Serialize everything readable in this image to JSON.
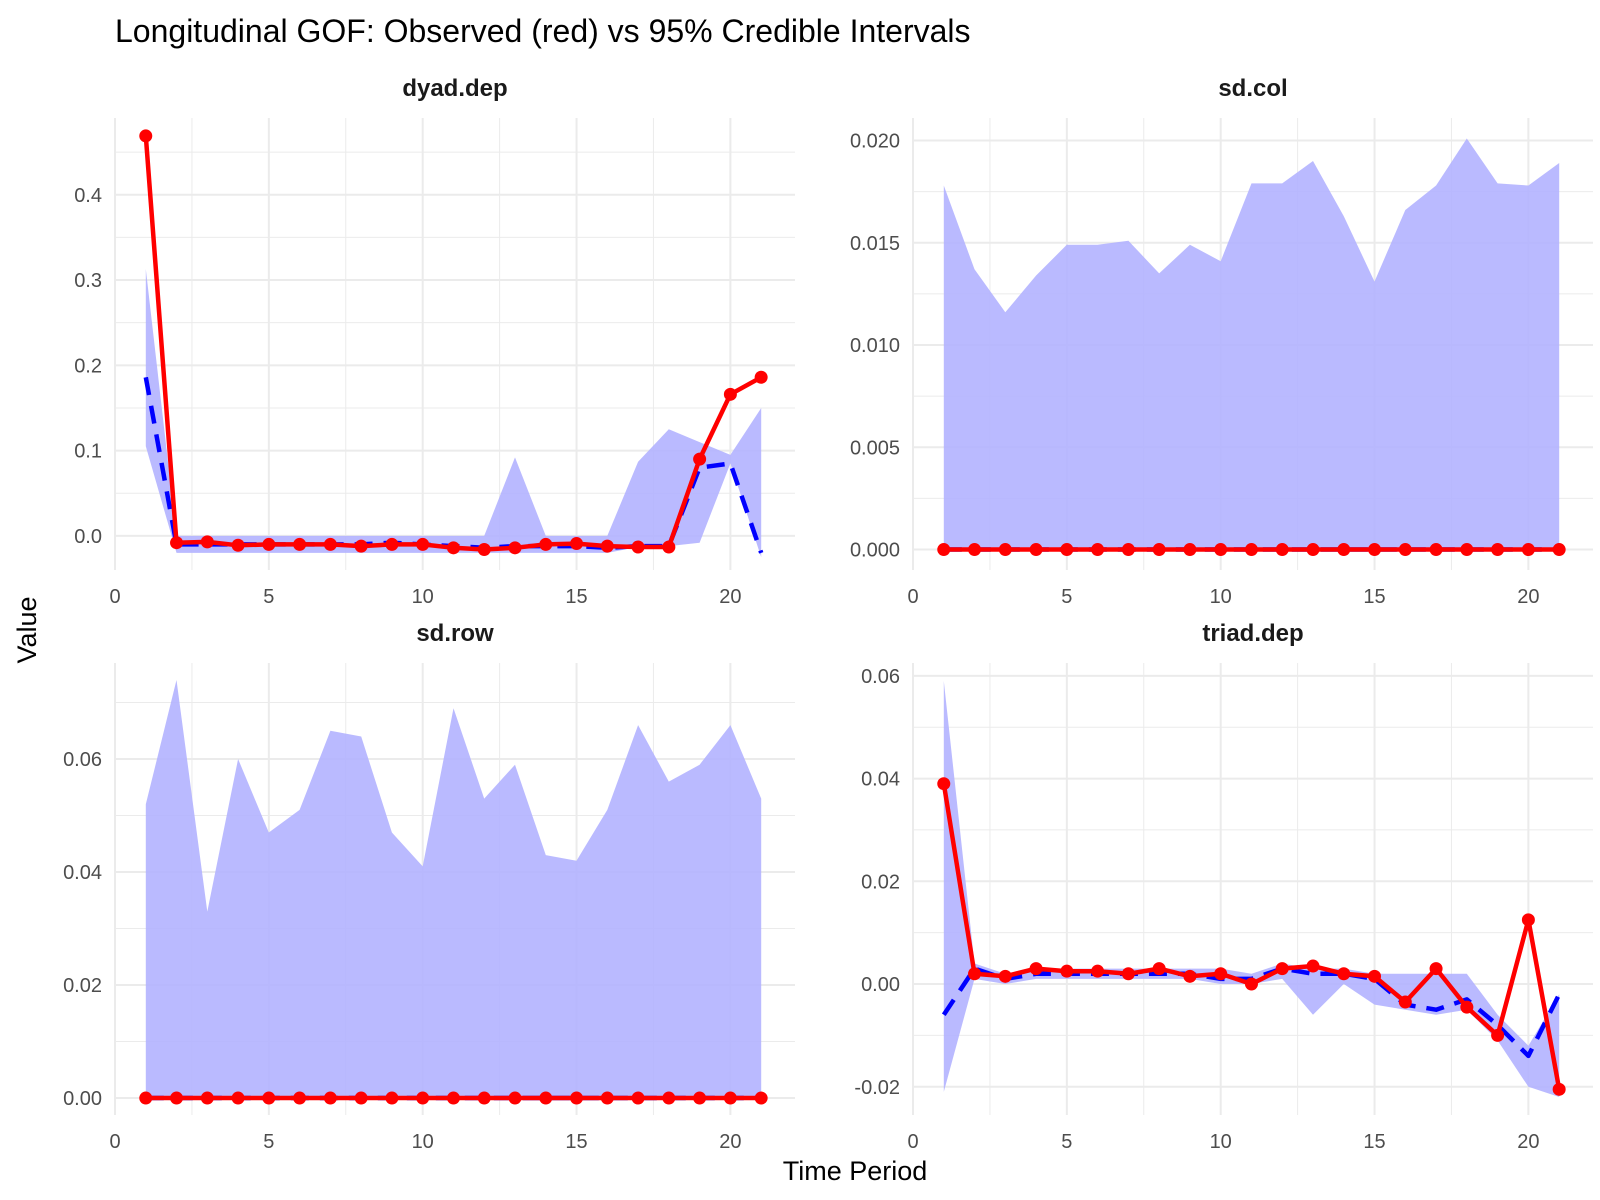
{
  "title": "Longitudinal GOF: Observed (red) vs 95% Credible Intervals",
  "xlabel": "Time Period",
  "ylabel": "Value",
  "colors": {
    "observed": "#ff0000",
    "predicted": "#0000ff",
    "ribbon": "#b3b3ff",
    "grid": "#ebebeb"
  },
  "chart_data": [
    {
      "type": "line",
      "panel": "dyad.dep",
      "x": [
        1,
        2,
        3,
        4,
        5,
        6,
        7,
        8,
        9,
        10,
        11,
        12,
        13,
        14,
        15,
        16,
        17,
        18,
        19,
        20,
        21
      ],
      "xlim": [
        0,
        22.1
      ],
      "xticks": [
        "0",
        "5",
        "10",
        "15",
        "20"
      ],
      "xtick_values": [
        0,
        5,
        10,
        15,
        20
      ],
      "ylim": [
        -0.04,
        0.49
      ],
      "yticks": [
        "0.0",
        "0.1",
        "0.2",
        "0.3",
        "0.4"
      ],
      "ytick_values": [
        0,
        0.1,
        0.2,
        0.3,
        0.4
      ],
      "series": [
        {
          "name": "Observed",
          "role": "observed",
          "values": [
            0.469,
            -0.008,
            -0.007,
            -0.011,
            -0.01,
            -0.01,
            -0.01,
            -0.012,
            -0.01,
            -0.01,
            -0.014,
            -0.016,
            -0.014,
            -0.01,
            -0.009,
            -0.012,
            -0.013,
            -0.013,
            0.09,
            0.166,
            0.186
          ]
        },
        {
          "name": "Predicted mean",
          "role": "mean",
          "values": [
            0.186,
            -0.01,
            -0.01,
            -0.01,
            -0.01,
            -0.01,
            -0.01,
            -0.01,
            -0.008,
            -0.01,
            -0.012,
            -0.014,
            -0.012,
            -0.012,
            -0.012,
            -0.014,
            -0.012,
            -0.012,
            0.08,
            0.085,
            -0.02
          ]
        },
        {
          "name": "95% CI upper",
          "role": "upper",
          "values": [
            0.313,
            0.0,
            0.0,
            0.0,
            0.0,
            0.0,
            0.0,
            0.0,
            0.0,
            0.0,
            0.0,
            0.0,
            0.092,
            0.0,
            0.0,
            0.0,
            0.087,
            0.125,
            0.11,
            0.095,
            0.15
          ]
        },
        {
          "name": "95% CI lower",
          "role": "lower",
          "values": [
            0.105,
            -0.02,
            -0.02,
            -0.02,
            -0.02,
            -0.02,
            -0.02,
            -0.02,
            -0.02,
            -0.02,
            -0.02,
            -0.02,
            -0.02,
            -0.02,
            -0.02,
            -0.02,
            -0.013,
            -0.012,
            -0.008,
            0.085,
            -0.025
          ]
        }
      ]
    },
    {
      "type": "line",
      "panel": "sd.col",
      "x": [
        1,
        2,
        3,
        4,
        5,
        6,
        7,
        8,
        9,
        10,
        11,
        12,
        13,
        14,
        15,
        16,
        17,
        18,
        19,
        20,
        21
      ],
      "xlim": [
        0,
        22.1
      ],
      "xticks": [
        "0",
        "5",
        "10",
        "15",
        "20"
      ],
      "xtick_values": [
        0,
        5,
        10,
        15,
        20
      ],
      "ylim": [
        -0.001,
        0.0211
      ],
      "yticks": [
        "0.000",
        "0.005",
        "0.010",
        "0.015",
        "0.020"
      ],
      "ytick_values": [
        0,
        0.005,
        0.01,
        0.015,
        0.02
      ],
      "series": [
        {
          "name": "Observed",
          "role": "observed",
          "values": [
            0,
            0,
            0,
            0,
            0,
            0,
            0,
            0,
            0,
            0,
            0,
            0,
            0,
            0,
            0,
            0,
            0,
            0,
            0,
            0,
            0
          ]
        },
        {
          "name": "Predicted mean",
          "role": "mean",
          "values": [
            0,
            0,
            0,
            0,
            0,
            0,
            0,
            0,
            0,
            0,
            0,
            0,
            0,
            0,
            0,
            0,
            0,
            0,
            0,
            0,
            0
          ]
        },
        {
          "name": "95% CI upper",
          "role": "upper",
          "values": [
            0.0178,
            0.0137,
            0.0116,
            0.0134,
            0.0149,
            0.0149,
            0.0151,
            0.0135,
            0.0149,
            0.0141,
            0.0179,
            0.0179,
            0.019,
            0.0163,
            0.0131,
            0.0166,
            0.0178,
            0.0201,
            0.0179,
            0.0178,
            0.0189
          ]
        },
        {
          "name": "95% CI lower",
          "role": "lower",
          "values": [
            0,
            0,
            0,
            0,
            0,
            0,
            0,
            0,
            0,
            0,
            0,
            0,
            0,
            0,
            0,
            0,
            0,
            0,
            0,
            0,
            0
          ]
        }
      ]
    },
    {
      "type": "line",
      "panel": "sd.row",
      "x": [
        1,
        2,
        3,
        4,
        5,
        6,
        7,
        8,
        9,
        10,
        11,
        12,
        13,
        14,
        15,
        16,
        17,
        18,
        19,
        20,
        21
      ],
      "xlim": [
        0,
        22.1
      ],
      "xticks": [
        "0",
        "5",
        "10",
        "15",
        "20"
      ],
      "xtick_values": [
        0,
        5,
        10,
        15,
        20
      ],
      "ylim": [
        -0.003,
        0.077
      ],
      "yticks": [
        "0.00",
        "0.02",
        "0.04",
        "0.06"
      ],
      "ytick_values": [
        0,
        0.02,
        0.04,
        0.06
      ],
      "series": [
        {
          "name": "Observed",
          "role": "observed",
          "values": [
            0,
            0,
            0,
            0,
            0,
            0,
            0,
            0,
            0,
            0,
            0,
            0,
            0,
            0,
            0,
            0,
            0,
            0,
            0,
            0,
            0
          ]
        },
        {
          "name": "Predicted mean",
          "role": "mean",
          "values": [
            0,
            0,
            0,
            0,
            0,
            0,
            0,
            0,
            0,
            0,
            0,
            0,
            0,
            0,
            0,
            0,
            0,
            0,
            0,
            0,
            0
          ]
        },
        {
          "name": "95% CI upper",
          "role": "upper",
          "values": [
            0.052,
            0.074,
            0.033,
            0.06,
            0.047,
            0.051,
            0.065,
            0.064,
            0.047,
            0.041,
            0.069,
            0.053,
            0.059,
            0.043,
            0.042,
            0.051,
            0.066,
            0.056,
            0.059,
            0.066,
            0.053
          ]
        },
        {
          "name": "95% CI lower",
          "role": "lower",
          "values": [
            0,
            0,
            0,
            0,
            0,
            0,
            0,
            0,
            0,
            0,
            0,
            0,
            0,
            0,
            0,
            0,
            0,
            0,
            0,
            0,
            0
          ]
        }
      ]
    },
    {
      "type": "line",
      "panel": "triad.dep",
      "x": [
        1,
        2,
        3,
        4,
        5,
        6,
        7,
        8,
        9,
        10,
        11,
        12,
        13,
        14,
        15,
        16,
        17,
        18,
        19,
        20,
        21
      ],
      "xlim": [
        0,
        22.1
      ],
      "xticks": [
        "0",
        "5",
        "10",
        "15",
        "20"
      ],
      "xtick_values": [
        0,
        5,
        10,
        15,
        20
      ],
      "ylim": [
        -0.0255,
        0.0625
      ],
      "yticks": [
        "-0.02",
        "0.00",
        "0.02",
        "0.04",
        "0.06"
      ],
      "ytick_values": [
        -0.02,
        0,
        0.02,
        0.04,
        0.06
      ],
      "series": [
        {
          "name": "Observed",
          "role": "observed",
          "values": [
            0.039,
            0.002,
            0.0015,
            0.003,
            0.0025,
            0.0025,
            0.002,
            0.003,
            0.0015,
            0.002,
            0.0,
            0.003,
            0.0035,
            0.002,
            0.0015,
            -0.0035,
            0.003,
            -0.0045,
            -0.01,
            0.0125,
            -0.0205
          ]
        },
        {
          "name": "Predicted mean",
          "role": "mean",
          "values": [
            -0.006,
            0.003,
            0.001,
            0.002,
            0.002,
            0.002,
            0.002,
            0.002,
            0.002,
            0.001,
            0.001,
            0.003,
            0.002,
            0.002,
            0.001,
            -0.004,
            -0.005,
            -0.003,
            -0.008,
            -0.014,
            -0.002
          ]
        },
        {
          "name": "95% CI upper",
          "role": "upper",
          "values": [
            0.059,
            0.004,
            0.002,
            0.003,
            0.003,
            0.003,
            0.003,
            0.003,
            0.003,
            0.003,
            0.002,
            0.004,
            0.003,
            0.003,
            0.002,
            0.002,
            0.002,
            0.002,
            -0.006,
            -0.012,
            -0.002
          ]
        },
        {
          "name": "95% CI lower",
          "role": "lower",
          "values": [
            -0.021,
            0.001,
            0.0,
            0.001,
            0.001,
            0.001,
            0.001,
            0.001,
            0.001,
            0.0,
            0.0,
            0.001,
            -0.006,
            0.0,
            -0.004,
            -0.005,
            -0.006,
            -0.005,
            -0.011,
            -0.02,
            -0.022
          ]
        }
      ]
    }
  ]
}
